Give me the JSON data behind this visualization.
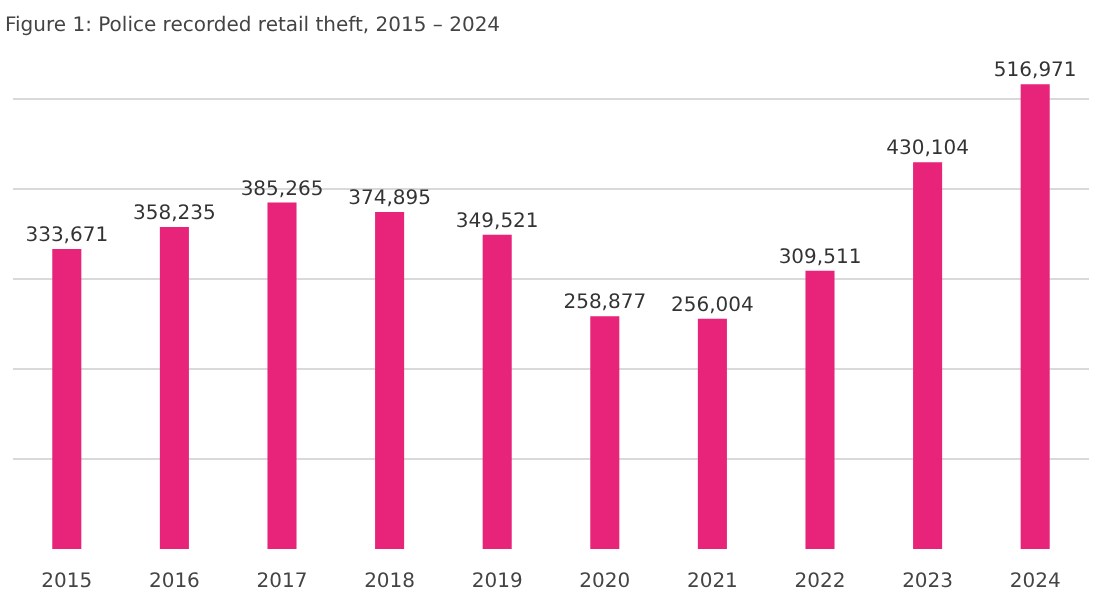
{
  "chart_data": {
    "type": "bar",
    "title": "Figure 1: Police recorded retail theft, 2015 – 2024",
    "categories": [
      "2015",
      "2016",
      "2017",
      "2018",
      "2019",
      "2020",
      "2021",
      "2022",
      "2023",
      "2024"
    ],
    "values": [
      333671,
      358235,
      385265,
      374895,
      349521,
      258877,
      256004,
      309511,
      430104,
      516971
    ],
    "value_labels": [
      "333,671",
      "358,235",
      "385,265",
      "374,895",
      "349,521",
      "258,877",
      "256,004",
      "309,511",
      "430,104",
      "516,971"
    ],
    "color": "#e8237a",
    "grid": "y",
    "tick_labels": "x"
  }
}
